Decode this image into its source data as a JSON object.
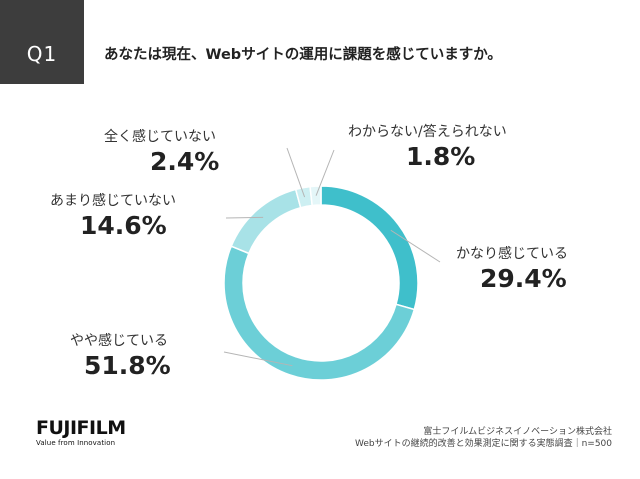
{
  "header": {
    "badge": "Q1",
    "question": "あなたは現在、Webサイトの運用に課題を感じていますか。"
  },
  "chart_data": {
    "type": "pie",
    "variant": "donut",
    "start": "top, clockwise",
    "slices": [
      {
        "name": "かなり感じている",
        "value": 29.4,
        "label": "29.4%",
        "color": "#3fbfcb"
      },
      {
        "name": "やや感じている",
        "value": 51.8,
        "label": "51.8%",
        "color": "#6ccfd7"
      },
      {
        "name": "あまり感じていない",
        "value": 14.6,
        "label": "14.6%",
        "color": "#a8e2e7"
      },
      {
        "name": "全く感じていない",
        "value": 2.4,
        "label": "2.4%",
        "color": "#cdeff2"
      },
      {
        "name": "わからない/答えられない",
        "value": 1.8,
        "label": "1.8%",
        "color": "#e4f6f8"
      }
    ]
  },
  "logo": {
    "brand": "FUJIFILM",
    "tagline": "Value from Innovation"
  },
  "footer": {
    "company": "富士フイルムビジネスイノベーション株式会社",
    "survey": "Webサイトの継続的改善と効果測定に関する実態調査｜n=500"
  }
}
